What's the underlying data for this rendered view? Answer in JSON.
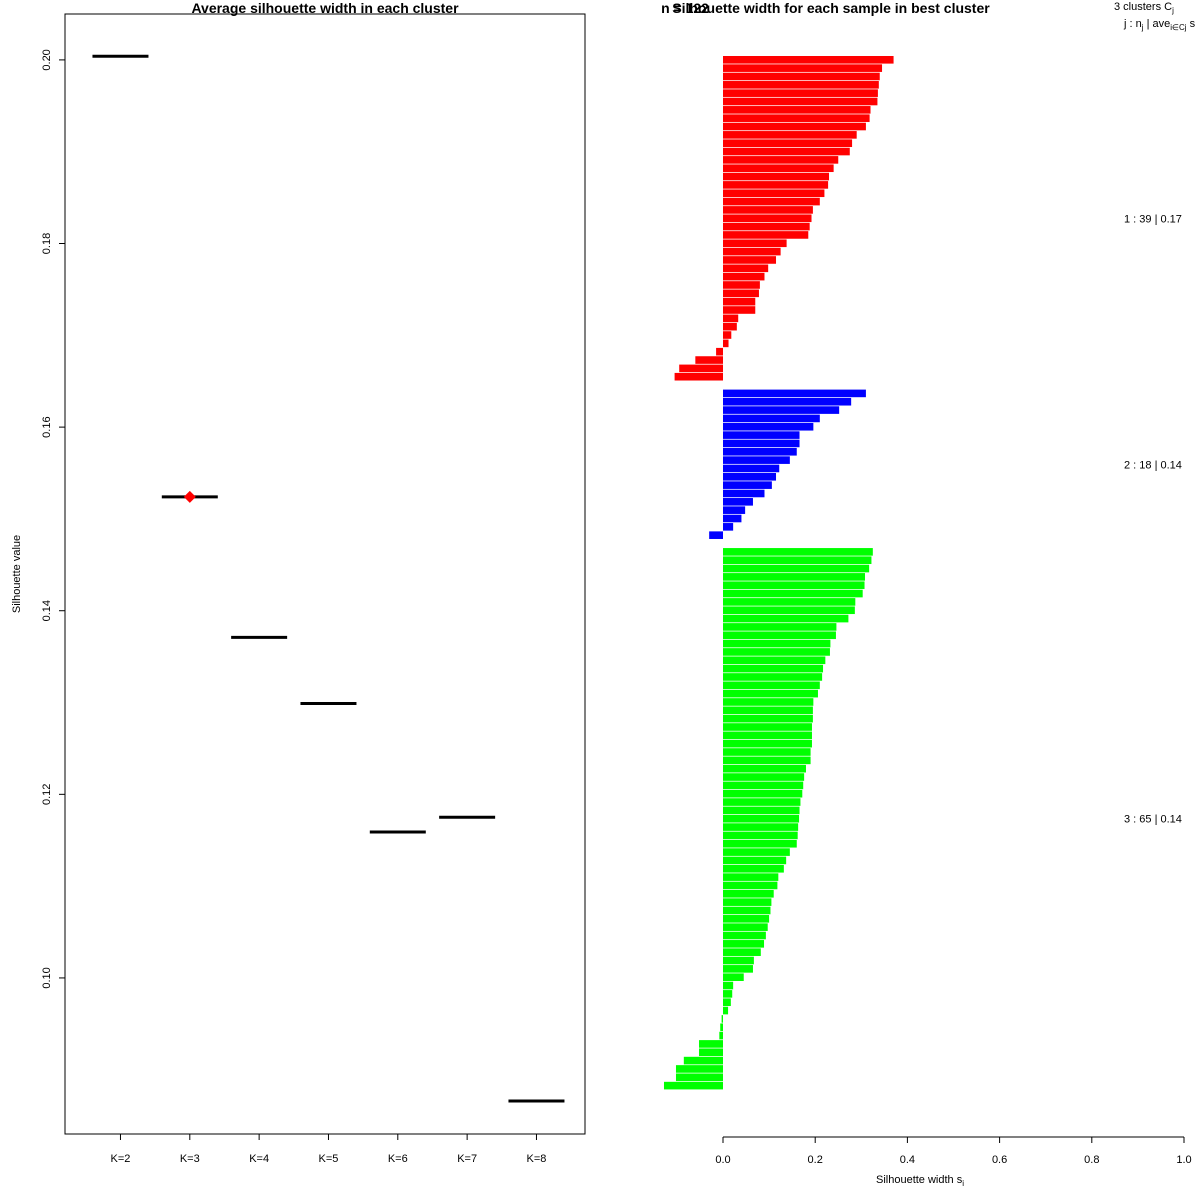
{
  "chart_data": [
    {
      "type": "scatter",
      "title": "Average silhouette width in each cluster",
      "xlabel": "",
      "ylabel": "Silhouette value",
      "categories": [
        "K=2",
        "K=3",
        "K=4",
        "K=5",
        "K=6",
        "K=7",
        "K=8"
      ],
      "values": [
        0.2004,
        0.1524,
        0.1371,
        0.1299,
        0.1159,
        0.1175,
        0.0866
      ],
      "best_index": 1,
      "ylim": [
        0.083,
        0.205
      ],
      "yticks": [
        "0.10",
        "0.12",
        "0.14",
        "0.16",
        "0.18",
        "0.20"
      ],
      "ytick_values": [
        0.1,
        0.12,
        0.14,
        0.16,
        0.18,
        0.2
      ],
      "colors": {
        "line": "#000000",
        "best_marker": "#ff0000"
      }
    },
    {
      "type": "bar",
      "title": "Silhouette width for each sample in best cluster",
      "overlap_title": "n = 122",
      "xlabel": "Silhouette width s",
      "xlabel_sub": "i",
      "xlim": [
        0,
        1
      ],
      "xticks": [
        "0.0",
        "0.2",
        "0.4",
        "0.6",
        "0.8",
        "1.0"
      ],
      "xtick_values": [
        0.0,
        0.2,
        0.4,
        0.6,
        0.8,
        1.0
      ],
      "header": {
        "line1": "3  clusters  C",
        "line1_sub": "j",
        "line2": "j :  n",
        "line2_sub1": "j",
        "line2_mid": " | ave",
        "line2_sub2": "i∈Cj",
        "line2_end": "  s"
      },
      "clusters": [
        {
          "label": "1 :  39  |  0.17",
          "color": "#ff0000",
          "values": [
            0.37,
            0.345,
            0.34,
            0.338,
            0.336,
            0.335,
            0.32,
            0.318,
            0.31,
            0.29,
            0.28,
            0.275,
            0.25,
            0.24,
            0.23,
            0.228,
            0.22,
            0.21,
            0.195,
            0.192,
            0.188,
            0.185,
            0.138,
            0.125,
            0.115,
            0.098,
            0.09,
            0.08,
            0.078,
            0.07,
            0.07,
            0.033,
            0.03,
            0.018,
            0.012,
            -0.015,
            -0.06,
            -0.095,
            -0.105
          ]
        },
        {
          "label": "2 :  18  |  0.14",
          "color": "#0000ff",
          "values": [
            0.31,
            0.278,
            0.252,
            0.21,
            0.196,
            0.166,
            0.166,
            0.16,
            0.145,
            0.122,
            0.115,
            0.106,
            0.09,
            0.065,
            0.048,
            0.04,
            0.022,
            -0.03
          ]
        },
        {
          "label": "3 :  65  |  0.14",
          "color": "#00ff00",
          "values": [
            0.325,
            0.322,
            0.317,
            0.308,
            0.307,
            0.303,
            0.287,
            0.286,
            0.272,
            0.246,
            0.245,
            0.233,
            0.232,
            0.222,
            0.217,
            0.215,
            0.21,
            0.206,
            0.196,
            0.195,
            0.195,
            0.193,
            0.193,
            0.193,
            0.19,
            0.19,
            0.18,
            0.176,
            0.174,
            0.172,
            0.168,
            0.166,
            0.165,
            0.163,
            0.162,
            0.16,
            0.145,
            0.137,
            0.132,
            0.12,
            0.118,
            0.11,
            0.105,
            0.103,
            0.1,
            0.097,
            0.093,
            0.089,
            0.082,
            0.067,
            0.065,
            0.045,
            0.022,
            0.02,
            0.017,
            0.011,
            -0.003,
            -0.006,
            -0.008,
            -0.052,
            -0.052,
            -0.085,
            -0.102,
            -0.102,
            -0.128
          ]
        }
      ]
    }
  ]
}
